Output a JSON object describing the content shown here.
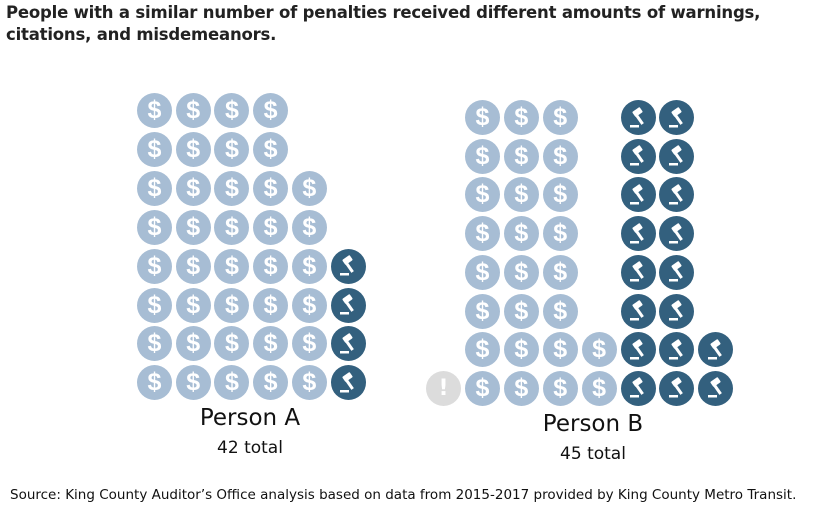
{
  "chart_data": {
    "type": "pictogram",
    "title": "People with a similar number of penalties received different amounts of warnings, citations, and misdemeanors.",
    "legend_note": "D = citation (dollar icon), G = misdemeanor (gavel icon), W = warning (exclamation icon), _ = empty",
    "people": [
      {
        "name": "Person A",
        "total_label": "42 total",
        "total": 42,
        "citations": 38,
        "misdemeanors": 4,
        "warnings": 0,
        "rows": [
          "DDDD",
          "DDDD",
          "DDDDD",
          "DDDDD",
          "DDDDDG",
          "DDDDDG",
          "DDDDDG",
          "DDDDDG"
        ]
      },
      {
        "name": "Person B",
        "total_label": "45 total",
        "total": 45,
        "citations": 26,
        "misdemeanors": 18,
        "warnings": 1,
        "rows": [
          "_DDD_GG",
          "_DDD_GG",
          "_DDD_GG",
          "_DDD_GG",
          "_DDD_GG",
          "_DDD_GG",
          "_DDDDGGG",
          "WDDDDGGG"
        ]
      }
    ],
    "source": "Source: King County Auditor’s Office analysis based on data from 2015-2017 provided by King County Metro Transit."
  },
  "colors": {
    "citation": "#a7bdd4",
    "misdemeanor": "#33607e",
    "warning": "#dcdcdc"
  }
}
